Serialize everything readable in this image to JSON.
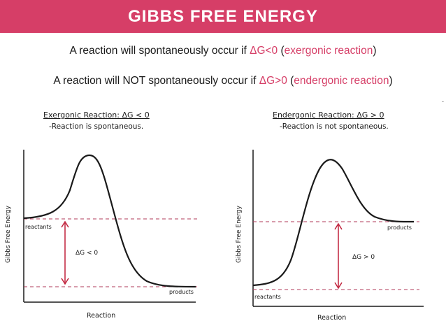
{
  "slide": {
    "title": "GIBBS FREE ENERGY",
    "line1": {
      "prefix": "A reaction will spontaneously occur if ",
      "condition": "ΔG<0",
      "paren_open": " (",
      "term": "exergonic reaction",
      "paren_close": ")"
    },
    "line2": {
      "prefix": "A reaction will NOT spontaneously occur if ",
      "condition": "ΔG>0",
      "paren_open": " (",
      "term": "endergonic reaction",
      "paren_close": ")"
    },
    "accent_color": "#d63e67"
  },
  "diagrams": {
    "exergonic": {
      "heading": "Exergonic Reaction: ΔG < 0",
      "subheading": "-Reaction is spontaneous.",
      "y_axis_label": "Gibbs Free Energy",
      "x_axis_label": "Reaction",
      "start_label": "reactants",
      "end_label": "products",
      "delta_label": "ΔG < 0"
    },
    "endergonic": {
      "heading": "Endergonic Reaction: ΔG > 0",
      "subheading": "-Reaction is not spontaneous.",
      "y_axis_label": "Gibbs Free Energy",
      "x_axis_label": "Reaction",
      "start_label": "reactants",
      "end_label": "products",
      "delta_label": "ΔG > 0"
    },
    "curve_color": "#1a1a1a",
    "guide_color": "#b03a5a",
    "arrow_color": "#c0203a"
  }
}
